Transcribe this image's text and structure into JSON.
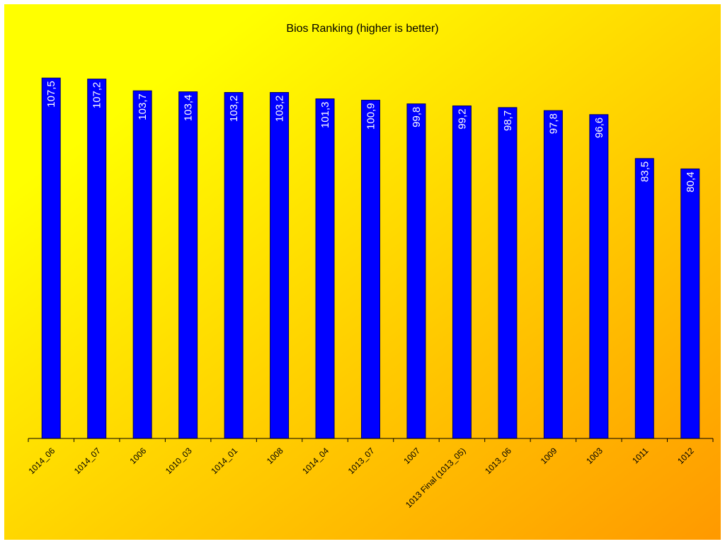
{
  "chart_data": {
    "type": "bar",
    "title": "Bios Ranking (higher is better)",
    "xlabel": "",
    "ylabel": "",
    "ylim": [
      0,
      120
    ],
    "grid": false,
    "legend": "none",
    "categories": [
      "1014_06",
      "1014_07",
      "1006",
      "1010_03",
      "1014_01",
      "1008",
      "1014_04",
      "1013_07",
      "1007",
      "1013 Final (1013_05)",
      "1013_06",
      "1009",
      "1003",
      "1011",
      "1012"
    ],
    "values": [
      107.5,
      107.2,
      103.7,
      103.4,
      103.2,
      103.2,
      101.3,
      100.9,
      99.8,
      99.2,
      98.7,
      97.8,
      96.6,
      83.5,
      80.4
    ],
    "value_labels": [
      "107,5",
      "107,2",
      "103,7",
      "103,4",
      "103,2",
      "103,2",
      "101,3",
      "100,9",
      "99,8",
      "99,2",
      "98,7",
      "97,8",
      "96,6",
      "83,5",
      "80,4"
    ],
    "colors": {
      "bar": "#0000ff",
      "bar_border": "#000066",
      "background_start": "#ffff00",
      "background_end": "#ff9900",
      "axis": "#000000"
    }
  }
}
